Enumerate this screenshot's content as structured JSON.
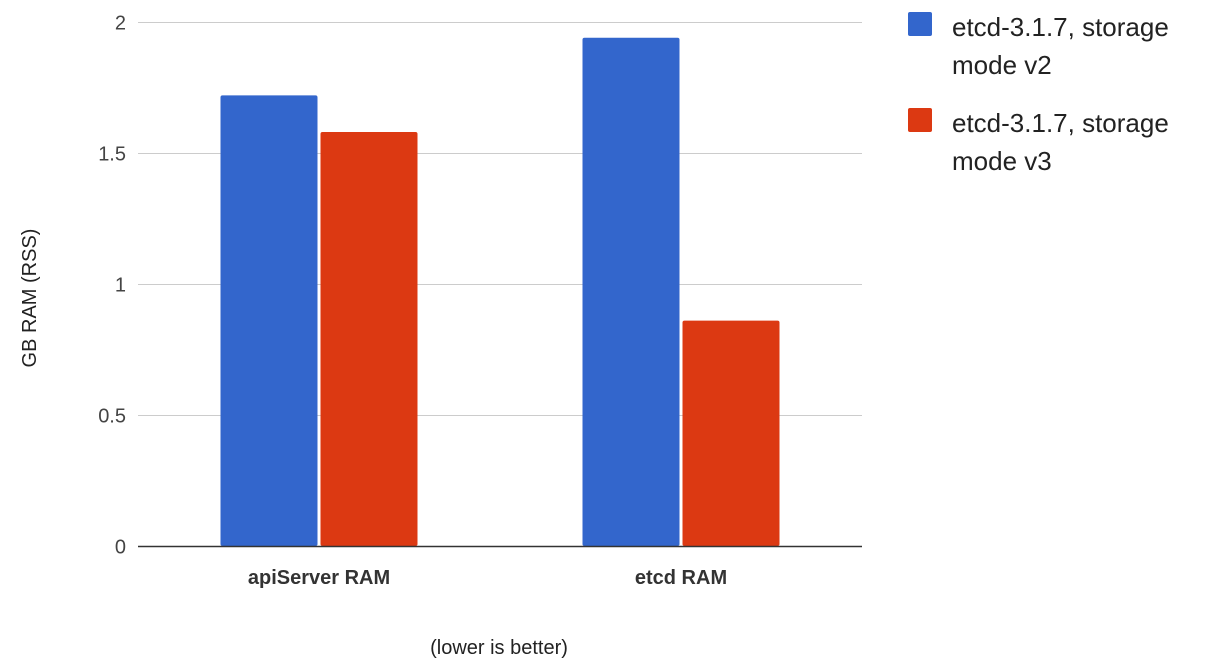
{
  "chart_data": {
    "type": "bar",
    "categories": [
      "apiServer RAM",
      "etcd RAM"
    ],
    "series": [
      {
        "name": "etcd-3.1.7, storage mode v2",
        "color": "#3366cc",
        "values": [
          1.72,
          1.94
        ]
      },
      {
        "name": "etcd-3.1.7, storage mode v3",
        "color": "#dc3912",
        "values": [
          1.58,
          0.86
        ]
      }
    ],
    "title": "",
    "xlabel": "(lower is better)",
    "ylabel": "GB RAM (RSS)",
    "ylim": [
      0,
      2
    ],
    "yticks": [
      0,
      0.5,
      1,
      1.5,
      2
    ],
    "ytick_labels": [
      "0",
      "0.5",
      "1",
      "1.5",
      "2"
    ],
    "grid": true,
    "legend_position": "right",
    "legend_entries": [
      {
        "lines": [
          "etcd-3.1.7, storage",
          "mode v2"
        ]
      },
      {
        "lines": [
          "etcd-3.1.7, storage",
          "mode v3"
        ]
      }
    ]
  }
}
